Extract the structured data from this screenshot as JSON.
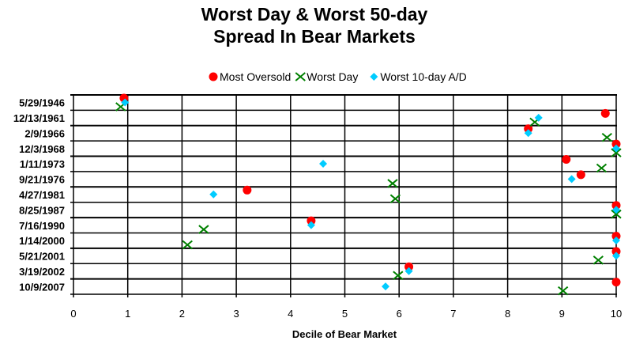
{
  "chart_data": {
    "type": "scatter",
    "title": [
      "Worst Day & Worst 50-day",
      "Spread In Bear Markets"
    ],
    "xlabel": "Decile of Bear Market",
    "ylabel": "",
    "xlim": [
      0,
      10
    ],
    "x_ticks": [
      "0",
      "1",
      "2",
      "3",
      "4",
      "5",
      "6",
      "7",
      "8",
      "9",
      "10"
    ],
    "categories": [
      "5/29/1946",
      "12/13/1961",
      "2/9/1966",
      "12/3/1968",
      "1/11/1973",
      "9/21/1976",
      "4/27/1981",
      "8/25/1987",
      "7/16/1990",
      "1/14/2000",
      "5/21/2001",
      "3/19/2002",
      "10/9/2007"
    ],
    "grid": true,
    "legend_position": "top-center",
    "series": [
      {
        "name": "Most Oversold",
        "marker": "circle",
        "color": "#ff0000",
        "values": [
          0.93,
          9.8,
          8.38,
          10,
          9.08,
          9.35,
          3.2,
          10,
          4.38,
          10,
          10,
          6.18,
          10
        ]
      },
      {
        "name": "Worst Day",
        "marker": "x",
        "color": "#008000",
        "values": [
          0.87,
          8.5,
          9.83,
          10,
          9.73,
          5.88,
          5.93,
          10,
          2.4,
          2.1,
          9.67,
          5.98,
          9.02
        ]
      },
      {
        "name": "Worst 10-day A/D",
        "marker": "diamond",
        "color": "#00ccff",
        "values": [
          0.95,
          8.57,
          8.38,
          10,
          4.6,
          9.18,
          2.58,
          10,
          4.38,
          10,
          10,
          6.18,
          5.75
        ]
      }
    ]
  }
}
